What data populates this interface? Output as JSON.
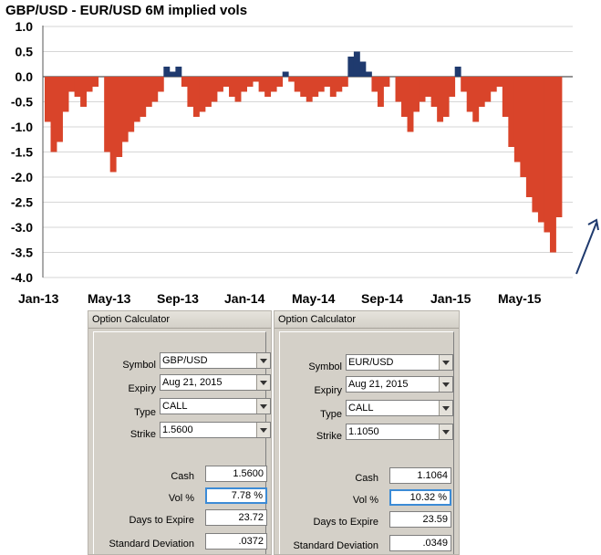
{
  "chart_data": {
    "type": "area",
    "title": "GBP/USD - EUR/USD 6M implied vols",
    "xlabel": "",
    "ylabel": "",
    "ylim": [
      -4.0,
      1.0
    ],
    "yticks": [
      "1.0",
      "0.5",
      "0.0",
      "-0.5",
      "-1.0",
      "-1.5",
      "-2.0",
      "-2.5",
      "-3.0",
      "-3.5",
      "-4.0"
    ],
    "xticks": [
      "Jan-13",
      "May-13",
      "Sep-13",
      "Jan-14",
      "May-14",
      "Sep-14",
      "Jan-15",
      "May-15"
    ],
    "grid": true,
    "positive_color": "#1f3a6e",
    "negative_color": "#d9442a",
    "x_start": "2013-01",
    "x_end": "2015-08",
    "values": [
      -0.9,
      -1.5,
      -1.3,
      -0.7,
      -0.3,
      -0.4,
      -0.6,
      -0.3,
      -0.2,
      0.0,
      -1.5,
      -1.9,
      -1.6,
      -1.3,
      -1.1,
      -0.9,
      -0.8,
      -0.6,
      -0.5,
      -0.3,
      0.2,
      0.1,
      0.2,
      -0.2,
      -0.6,
      -0.8,
      -0.7,
      -0.6,
      -0.5,
      -0.3,
      -0.2,
      -0.4,
      -0.5,
      -0.3,
      -0.2,
      -0.1,
      -0.3,
      -0.4,
      -0.3,
      -0.2,
      0.1,
      -0.1,
      -0.3,
      -0.4,
      -0.5,
      -0.4,
      -0.3,
      -0.2,
      -0.4,
      -0.3,
      -0.2,
      0.4,
      0.5,
      0.3,
      0.1,
      -0.3,
      -0.6,
      -0.2,
      0.0,
      -0.5,
      -0.8,
      -1.1,
      -0.7,
      -0.5,
      -0.4,
      -0.6,
      -0.9,
      -0.8,
      -0.4,
      0.2,
      -0.3,
      -0.7,
      -0.9,
      -0.6,
      -0.5,
      -0.3,
      -0.2,
      -0.8,
      -1.4,
      -1.7,
      -2.0,
      -2.4,
      -2.7,
      -2.9,
      -3.1,
      -3.5,
      -2.8
    ]
  },
  "calc_left": {
    "title": "Option Calculator",
    "symbol_label": "Symbol",
    "symbol": "GBP/USD",
    "expiry_label": "Expiry",
    "expiry": "Aug 21, 2015",
    "type_label": "Type",
    "type": "CALL",
    "strike_label": "Strike",
    "strike": "1.5600",
    "cash_label": "Cash",
    "cash": "1.5600",
    "vol_label": "Vol %",
    "vol": "7.78 %",
    "days_label": "Days to Expire",
    "days": "23.72",
    "stdev_label": "Standard Deviation",
    "stdev": ".0372"
  },
  "calc_right": {
    "title": "Option Calculator",
    "symbol_label": "Symbol",
    "symbol": "EUR/USD",
    "expiry_label": "Expiry",
    "expiry": "Aug 21, 2015",
    "type_label": "Type",
    "type": "CALL",
    "strike_label": "Strike",
    "strike": "1.1050",
    "cash_label": "Cash",
    "cash": "1.1064",
    "vol_label": "Vol %",
    "vol": "10.32 %",
    "days_label": "Days to Expire",
    "days": "23.59",
    "stdev_label": "Standard Deviation",
    "stdev": ".0349"
  }
}
